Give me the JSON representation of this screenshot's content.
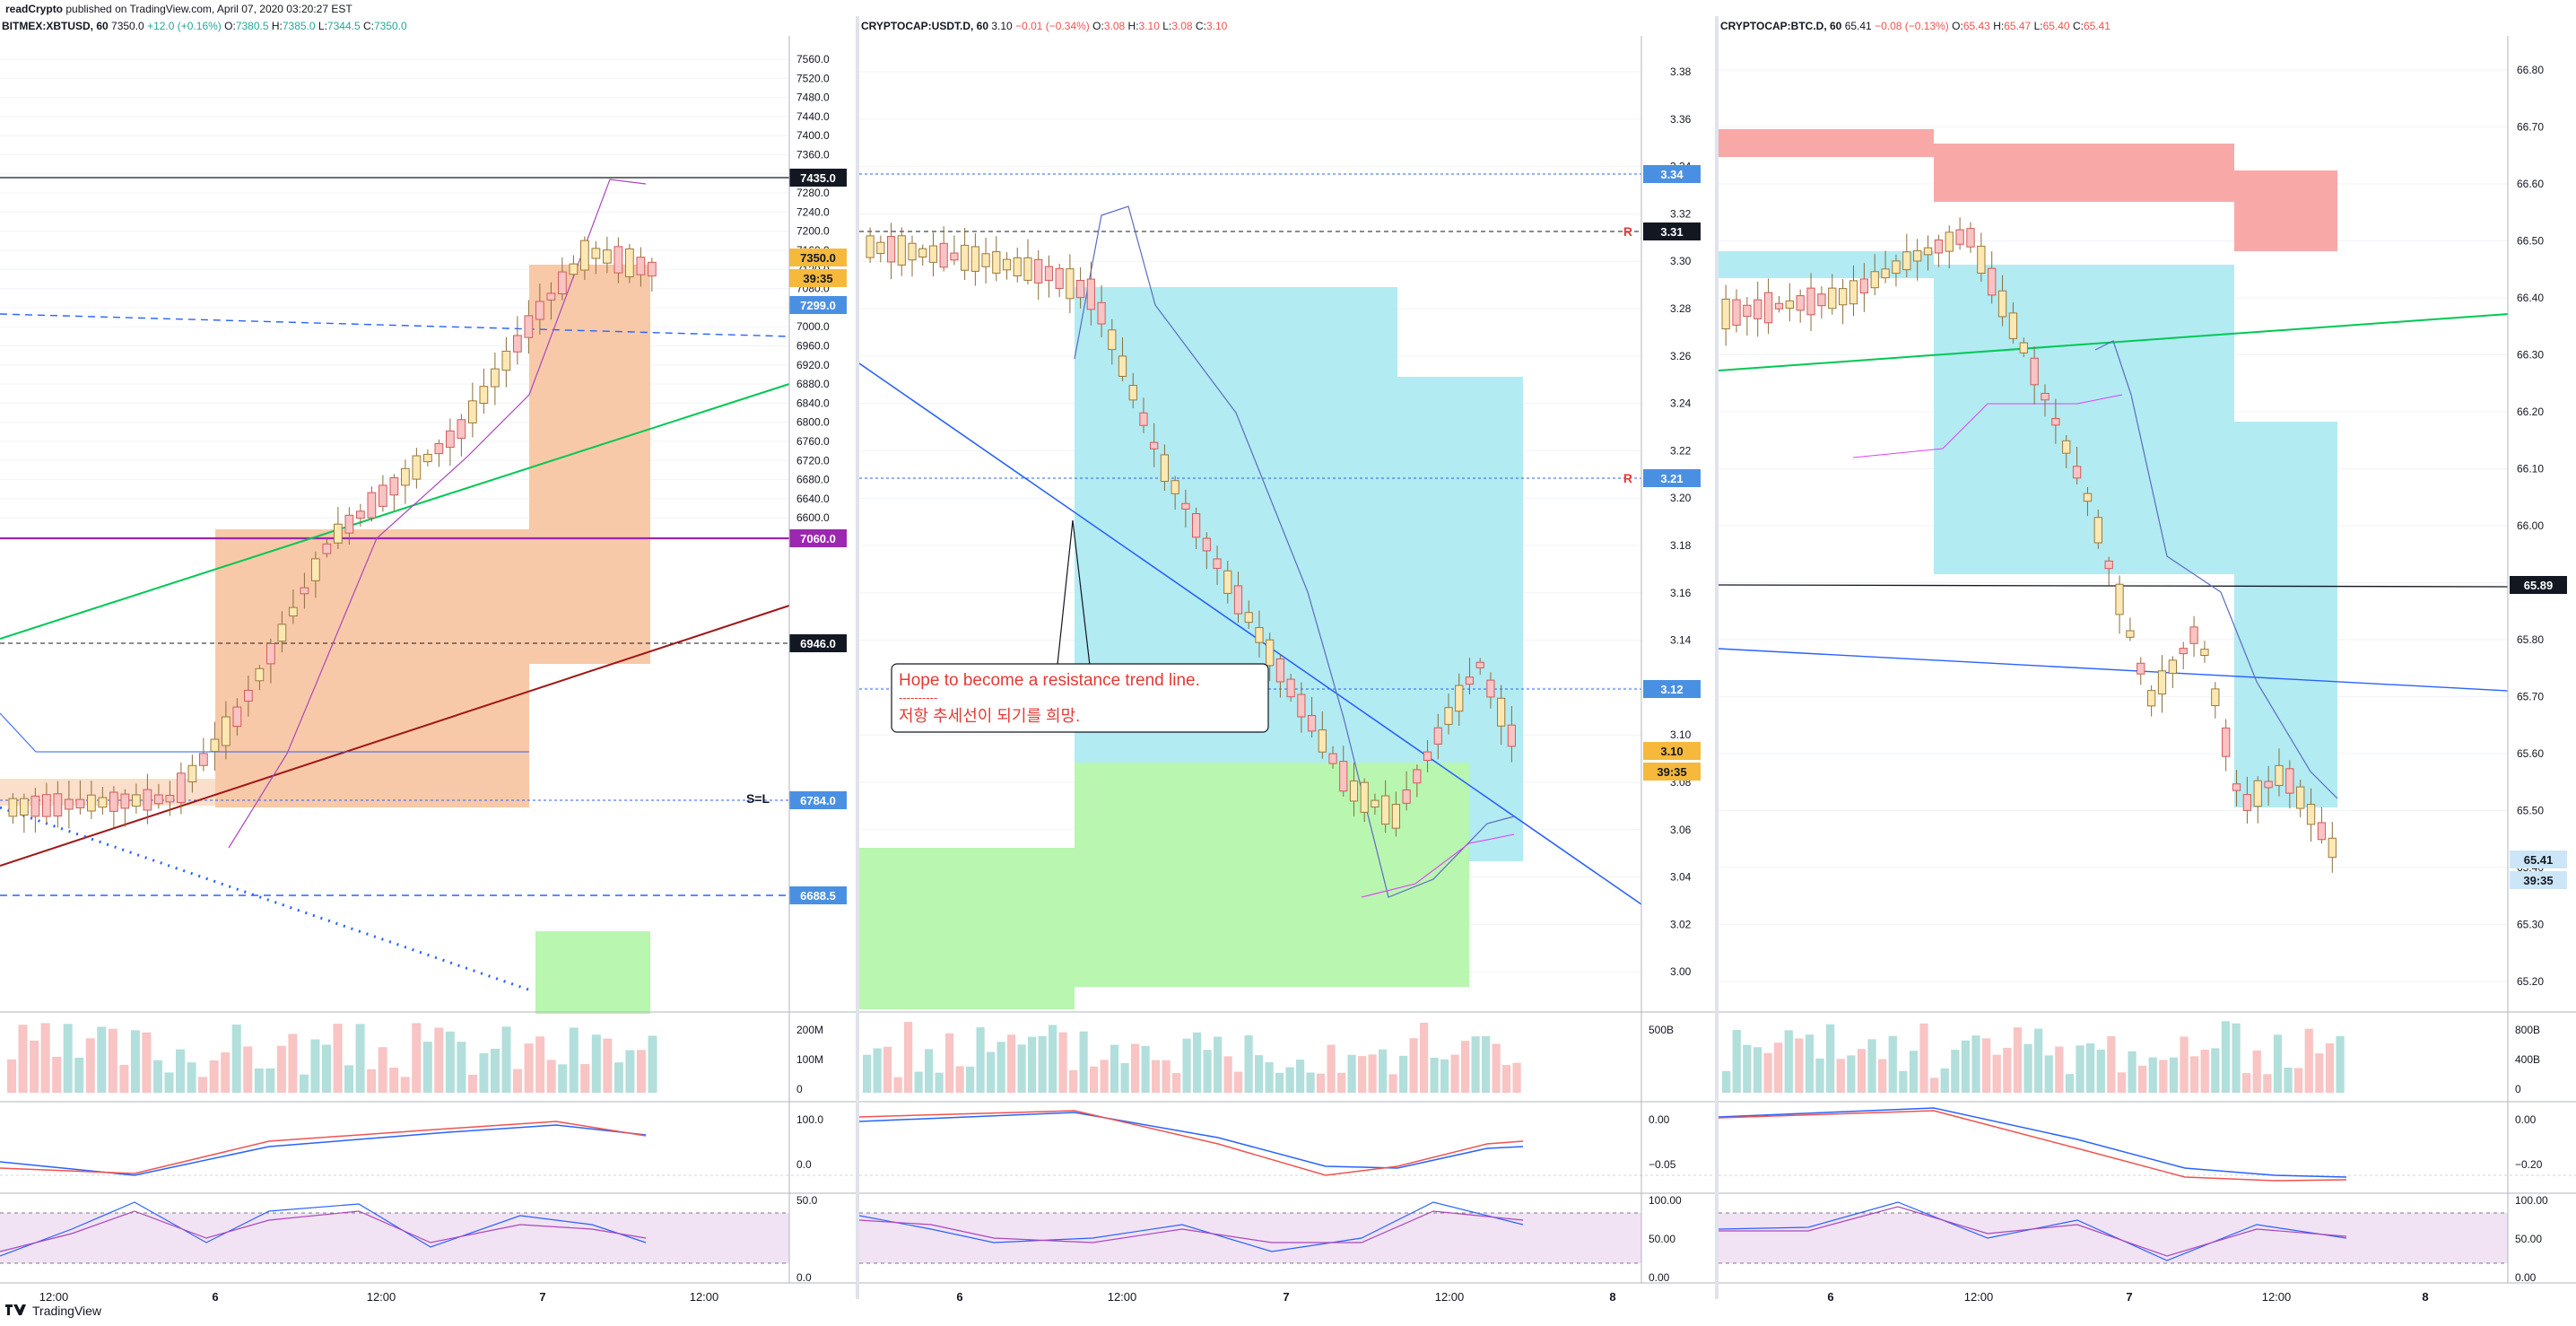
{
  "header": {
    "author": "readCrypto",
    "published": "published on TradingView.com, April 07, 2020 03:20:27 EST"
  },
  "footer": {
    "brand": "TradingView"
  },
  "colors": {
    "up": "#26a69a",
    "down": "#ef5350",
    "blue": "#2962ff"
  },
  "panels": [
    {
      "id": "xbtusd",
      "title": {
        "symbol": "BITMEX:XBTUSD, 60",
        "last": "7350.0",
        "change": "+12.0 (+0.16%)",
        "o": "7380.5",
        "h": "7385.0",
        "l": "7344.5",
        "c": "7350.0"
      },
      "ticks": [
        "7560.0",
        "7520.0",
        "7480.0",
        "7440.0",
        "7400.0",
        "7360.0",
        "7320.0",
        "7280.0",
        "7240.0",
        "7200.0",
        "7160.0",
        "7120.0",
        "7080.0",
        "7040.0",
        "7000.0",
        "6960.0",
        "6920.0",
        "6880.0",
        "6840.0",
        "6800.0",
        "6760.0",
        "6720.0",
        "6680.0",
        "6640.0",
        "6600.0"
      ],
      "price_labels": [
        "7435.0",
        "7350.0",
        "39:35",
        "7299.0",
        "7060.0",
        "6946.0",
        "6784.0",
        "6688.5"
      ],
      "marker": "S=L",
      "volume_ticks": [
        "200M",
        "100M",
        "0"
      ],
      "macd_ticks": [
        "100.0",
        "0.0"
      ],
      "rsi_ticks": [
        "50.0",
        "0.0"
      ],
      "time_labels": [
        "12:00",
        "6",
        "12:00",
        "7",
        "12:00"
      ]
    },
    {
      "id": "usdt",
      "title": {
        "symbol": "CRYPTOCAP:USDT.D, 60",
        "last": "3.10",
        "change": "−0.01 (−0.34%)",
        "o": "3.08",
        "h": "3.10",
        "l": "3.08",
        "c": "3.10"
      },
      "ticks": [
        "3.38",
        "3.36",
        "3.34",
        "3.32",
        "3.30",
        "3.28",
        "3.26",
        "3.24",
        "3.22",
        "3.20",
        "3.18",
        "3.16",
        "3.14",
        "3.12",
        "3.10",
        "3.08",
        "3.06",
        "3.04",
        "3.02",
        "3.00"
      ],
      "price_labels": [
        "3.34",
        "3.31",
        "3.21",
        "3.12",
        "3.10",
        "39:35"
      ],
      "markers": [
        "R",
        "R"
      ],
      "annotation": {
        "line1": "Hope to become a resistance trend line.",
        "line2": "----------",
        "line3": "저항 추세선이 되기를 희망."
      },
      "volume_ticks": [
        "500B"
      ],
      "macd_ticks": [
        "0.00",
        "−0.05"
      ],
      "rsi_ticks": [
        "100.00",
        "50.00",
        "0.00"
      ],
      "time_labels": [
        "6",
        "12:00",
        "7",
        "12:00",
        "8"
      ]
    },
    {
      "id": "btcd",
      "title": {
        "symbol": "CRYPTOCAP:BTC.D, 60",
        "last": "65.41",
        "change": "−0.08 (−0.13%)",
        "o": "65.43",
        "h": "65.47",
        "l": "65.40",
        "c": "65.41"
      },
      "ticks": [
        "66.80",
        "66.70",
        "66.60",
        "66.50",
        "66.40",
        "66.30",
        "66.20",
        "66.10",
        "66.00",
        "65.90",
        "65.80",
        "65.70",
        "65.60",
        "65.50",
        "65.40",
        "65.30",
        "65.20"
      ],
      "price_labels": [
        "65.89",
        "65.41",
        "39:35"
      ],
      "volume_ticks": [
        "800B",
        "400B",
        "0"
      ],
      "macd_ticks": [
        "0.00",
        "−0.20"
      ],
      "rsi_ticks": [
        "100.00",
        "50.00",
        "0.00"
      ],
      "time_labels": [
        "6",
        "12:00",
        "7",
        "12:00",
        "8"
      ]
    }
  ]
}
